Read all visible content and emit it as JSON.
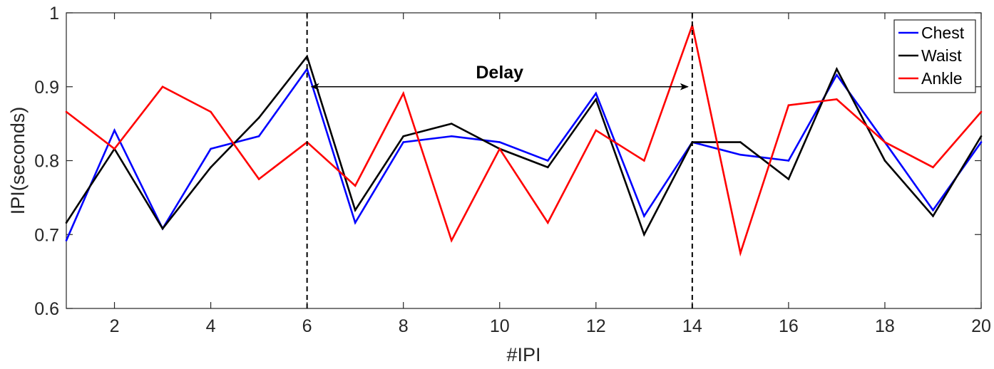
{
  "chart_data": {
    "type": "line",
    "title": "",
    "xlabel": "#IPI",
    "ylabel": "IPI(seconds)",
    "xlim": [
      1,
      20
    ],
    "ylim": [
      0.6,
      1.0
    ],
    "xticks": [
      2,
      4,
      6,
      8,
      10,
      12,
      14,
      16,
      18,
      20
    ],
    "yticks": [
      0.6,
      0.7,
      0.8,
      0.9,
      1.0
    ],
    "ytick_labels": [
      "0.6",
      "0.7",
      "0.8",
      "0.9",
      "1"
    ],
    "grid": false,
    "legend_position": "top-right",
    "x": [
      1,
      2,
      3,
      4,
      5,
      6,
      7,
      8,
      9,
      10,
      11,
      12,
      13,
      14,
      15,
      16,
      17,
      18,
      19,
      20
    ],
    "series": [
      {
        "name": "Chest",
        "color": "#0000ff",
        "values": [
          0.692,
          0.841,
          0.708,
          0.816,
          0.833,
          0.924,
          0.716,
          0.825,
          0.833,
          0.825,
          0.8,
          0.891,
          0.725,
          0.825,
          0.808,
          0.8,
          0.916,
          0.825,
          0.733,
          0.825
        ]
      },
      {
        "name": "Waist",
        "color": "#000000",
        "values": [
          0.716,
          0.816,
          0.708,
          0.791,
          0.858,
          0.941,
          0.733,
          0.833,
          0.85,
          0.816,
          0.791,
          0.883,
          0.7,
          0.825,
          0.825,
          0.775,
          0.924,
          0.8,
          0.725,
          0.833
        ]
      },
      {
        "name": "Ankle",
        "color": "#ff0000",
        "values": [
          0.866,
          0.816,
          0.9,
          0.866,
          0.775,
          0.825,
          0.766,
          0.891,
          0.692,
          0.816,
          0.716,
          0.841,
          0.8,
          0.983,
          0.675,
          0.875,
          0.883,
          0.825,
          0.791,
          0.866
        ]
      }
    ],
    "annotations": {
      "vlines": [
        6,
        14
      ],
      "arrow": {
        "x_start": 6,
        "x_end": 14,
        "y": 0.9,
        "label": "Delay",
        "label_y": 0.92
      }
    }
  }
}
